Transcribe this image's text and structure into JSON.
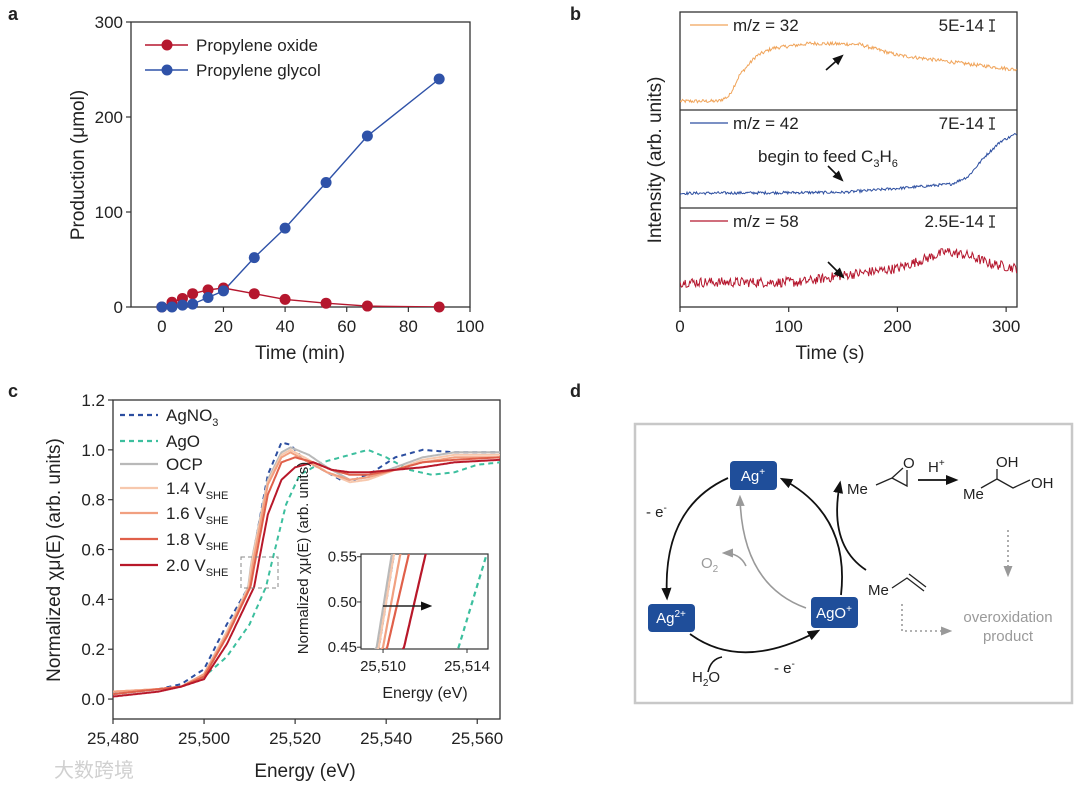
{
  "panel_labels": {
    "a": "a",
    "b": "b",
    "c": "c",
    "d": "d"
  },
  "watermark": "大数跨境",
  "chart_data": [
    {
      "panel": "a",
      "type": "line",
      "xlabel": "Time (min)",
      "ylabel": "Production (μmol)",
      "xlim": [
        -10,
        100
      ],
      "ylim": [
        0,
        300
      ],
      "xticks": [
        0,
        20,
        40,
        60,
        80,
        100
      ],
      "xticklabels": [
        "0",
        "20",
        "40",
        "60",
        "80",
        "100"
      ],
      "yticks": [
        0,
        100,
        200,
        300
      ],
      "yticklabels": [
        "0",
        "100",
        "200",
        "300"
      ],
      "legend": "top-left",
      "series": [
        {
          "name": "Propylene oxide",
          "color": "#b5172e",
          "x": [
            0,
            3.3,
            6.7,
            10,
            15,
            20,
            30,
            40,
            53.3,
            66.7,
            90
          ],
          "y": [
            0,
            5,
            9,
            14,
            18,
            20,
            14,
            8,
            4,
            1,
            0
          ]
        },
        {
          "name": "Propylene glycol",
          "color": "#2f52a8",
          "x": [
            0,
            3.3,
            6.7,
            10,
            15,
            20,
            30,
            40,
            53.3,
            66.7,
            90
          ],
          "y": [
            0,
            0,
            2,
            3,
            10,
            17,
            52,
            83,
            131,
            180,
            240
          ]
        }
      ]
    },
    {
      "panel": "b",
      "type": "line",
      "xlabel": "Time (s)",
      "ylabel": "Intensity (arb. units)",
      "xlim": [
        0,
        310
      ],
      "xticks": [
        0,
        100,
        200,
        300
      ],
      "xticklabels": [
        "0",
        "100",
        "200",
        "300"
      ],
      "series": [
        {
          "name": "m/z = 32",
          "color": "#f0a45a",
          "scale_bar": "5E-14",
          "noise": 0.018,
          "profile": [
            [
              0,
              0.09
            ],
            [
              35,
              0.09
            ],
            [
              45,
              0.14
            ],
            [
              55,
              0.36
            ],
            [
              70,
              0.55
            ],
            [
              85,
              0.63
            ],
            [
              120,
              0.68
            ],
            [
              165,
              0.67
            ],
            [
              200,
              0.56
            ],
            [
              250,
              0.49
            ],
            [
              310,
              0.41
            ]
          ]
        },
        {
          "name": "m/z = 42",
          "color": "#2c4ea0",
          "scale_bar": "7E-14",
          "noise": 0.014,
          "profile": [
            [
              0,
              0.15
            ],
            [
              150,
              0.16
            ],
            [
              200,
              0.2
            ],
            [
              250,
              0.245
            ],
            [
              265,
              0.32
            ],
            [
              280,
              0.52
            ],
            [
              295,
              0.68
            ],
            [
              310,
              0.76
            ]
          ]
        },
        {
          "name": "m/z = 58",
          "color": "#b5172e",
          "scale_bar": "2.5E-14",
          "noise": 0.05,
          "profile": [
            [
              0,
              0.25
            ],
            [
              110,
              0.25
            ],
            [
              150,
              0.32
            ],
            [
              200,
              0.39
            ],
            [
              245,
              0.56
            ],
            [
              265,
              0.52
            ],
            [
              285,
              0.44
            ],
            [
              310,
              0.39
            ]
          ]
        }
      ],
      "annotation": {
        "text": "begin to feed C",
        "sub1": "3",
        "mid": "H",
        "sub2": "6"
      }
    },
    {
      "panel": "c",
      "type": "line",
      "xlabel": "Energy (eV)",
      "ylabel": "Normalized χμ(E) (arb. units)",
      "xlim": [
        25480,
        25565
      ],
      "ylim": [
        -0.08,
        1.2
      ],
      "xticks": [
        25480,
        25500,
        25520,
        25540,
        25560
      ],
      "xticklabels": [
        "25,480",
        "25,500",
        "25,520",
        "25,540",
        "25,560"
      ],
      "yticks": [
        0,
        0.2,
        0.4,
        0.6,
        0.8,
        1.0,
        1.2
      ],
      "yticklabels": [
        "0.0",
        "0.2",
        "0.4",
        "0.6",
        "0.8",
        "1.0",
        "1.2"
      ],
      "legend": "top-left",
      "series": [
        {
          "name": "AgNO",
          "sub": "3",
          "color": "#2c4ea0",
          "dashed": true,
          "points": [
            [
              25480,
              0.02
            ],
            [
              25490,
              0.04
            ],
            [
              25495,
              0.06
            ],
            [
              25500,
              0.12
            ],
            [
              25505,
              0.3
            ],
            [
              25509.8,
              0.45
            ],
            [
              25510.5,
              0.55
            ],
            [
              25514,
              0.9
            ],
            [
              25517,
              1.03
            ],
            [
              25519,
              1.02
            ],
            [
              25522,
              0.96
            ],
            [
              25526,
              0.92
            ],
            [
              25530,
              0.88
            ],
            [
              25533,
              0.88
            ],
            [
              25537,
              0.91
            ],
            [
              25542,
              0.97
            ],
            [
              25548,
              1.0
            ],
            [
              25555,
              0.99
            ],
            [
              25565,
              0.99
            ]
          ]
        },
        {
          "name": "AgO",
          "sub": "",
          "color": "#3cbf9e",
          "dashed": true,
          "points": [
            [
              25480,
              0.02
            ],
            [
              25495,
              0.05
            ],
            [
              25500,
              0.09
            ],
            [
              25505,
              0.17
            ],
            [
              25510,
              0.3
            ],
            [
              25513.6,
              0.45
            ],
            [
              25514.9,
              0.55
            ],
            [
              25518,
              0.78
            ],
            [
              25521,
              0.9
            ],
            [
              25526,
              0.95
            ],
            [
              25532,
              0.98
            ],
            [
              25536,
              1.0
            ],
            [
              25540,
              0.97
            ],
            [
              25545,
              0.92
            ],
            [
              25550,
              0.9
            ],
            [
              25555,
              0.91
            ],
            [
              25560,
              0.94
            ],
            [
              25565,
              0.95
            ]
          ]
        },
        {
          "name": "OCP",
          "sub": "",
          "color": "#b9b9b9",
          "dashed": false,
          "points": [
            [
              25480,
              0.02
            ],
            [
              25490,
              0.04
            ],
            [
              25495,
              0.05
            ],
            [
              25500,
              0.1
            ],
            [
              25505,
              0.27
            ],
            [
              25509.7,
              0.45
            ],
            [
              25510.4,
              0.55
            ],
            [
              25514,
              0.88
            ],
            [
              25517,
              0.99
            ],
            [
              25519,
              1.01
            ],
            [
              25523,
              0.98
            ],
            [
              25527,
              0.93
            ],
            [
              25532,
              0.88
            ],
            [
              25536,
              0.89
            ],
            [
              25542,
              0.93
            ],
            [
              25548,
              0.97
            ],
            [
              25555,
              0.99
            ],
            [
              25565,
              0.99
            ]
          ]
        },
        {
          "name": "1.4 V",
          "sub": "SHE",
          "color": "#f7c8ad",
          "dashed": false,
          "points": [
            [
              25480,
              0.03
            ],
            [
              25490,
              0.04
            ],
            [
              25495,
              0.05
            ],
            [
              25500,
              0.1
            ],
            [
              25505,
              0.27
            ],
            [
              25509.8,
              0.45
            ],
            [
              25510.5,
              0.55
            ],
            [
              25514,
              0.87
            ],
            [
              25517,
              0.98
            ],
            [
              25519,
              1.0
            ],
            [
              25523,
              0.96
            ],
            [
              25527,
              0.91
            ],
            [
              25532,
              0.87
            ],
            [
              25536,
              0.88
            ],
            [
              25542,
              0.92
            ],
            [
              25548,
              0.96
            ],
            [
              25555,
              0.98
            ],
            [
              25565,
              0.98
            ]
          ]
        },
        {
          "name": "1.6 V",
          "sub": "SHE",
          "color": "#f1a080",
          "dashed": false,
          "points": [
            [
              25480,
              0.03
            ],
            [
              25490,
              0.04
            ],
            [
              25495,
              0.05
            ],
            [
              25500,
              0.1
            ],
            [
              25505,
              0.26
            ],
            [
              25510.0,
              0.45
            ],
            [
              25510.8,
              0.55
            ],
            [
              25514,
              0.86
            ],
            [
              25517,
              0.97
            ],
            [
              25519,
              0.99
            ],
            [
              25523,
              0.95
            ],
            [
              25527,
              0.91
            ],
            [
              25532,
              0.88
            ],
            [
              25536,
              0.89
            ],
            [
              25542,
              0.92
            ],
            [
              25548,
              0.95
            ],
            [
              25555,
              0.97
            ],
            [
              25565,
              0.97
            ]
          ]
        },
        {
          "name": "1.8 V",
          "sub": "SHE",
          "color": "#e0604a",
          "dashed": false,
          "points": [
            [
              25480,
              0.02
            ],
            [
              25490,
              0.04
            ],
            [
              25495,
              0.05
            ],
            [
              25500,
              0.09
            ],
            [
              25505,
              0.25
            ],
            [
              25510.2,
              0.45
            ],
            [
              25511.2,
              0.55
            ],
            [
              25514,
              0.82
            ],
            [
              25517,
              0.95
            ],
            [
              25520,
              0.97
            ],
            [
              25524,
              0.95
            ],
            [
              25528,
              0.92
            ],
            [
              25532,
              0.9
            ],
            [
              25536,
              0.9
            ],
            [
              25542,
              0.92
            ],
            [
              25548,
              0.95
            ],
            [
              25555,
              0.96
            ],
            [
              25565,
              0.97
            ]
          ]
        },
        {
          "name": "2.0 V",
          "sub": "SHE",
          "color": "#b8182a",
          "dashed": false,
          "points": [
            [
              25480,
              0.01
            ],
            [
              25490,
              0.03
            ],
            [
              25495,
              0.05
            ],
            [
              25500,
              0.08
            ],
            [
              25505,
              0.22
            ],
            [
              25511.0,
              0.45
            ],
            [
              25512.0,
              0.55
            ],
            [
              25514,
              0.74
            ],
            [
              25517,
              0.88
            ],
            [
              25520,
              0.93
            ],
            [
              25524,
              0.95
            ],
            [
              25528,
              0.92
            ],
            [
              25532,
              0.91
            ],
            [
              25536,
              0.91
            ],
            [
              25542,
              0.92
            ],
            [
              25548,
              0.93
            ],
            [
              25555,
              0.95
            ],
            [
              25565,
              0.96
            ]
          ]
        }
      ],
      "inset": {
        "xlabel": "Energy (eV)",
        "ylabel": "Normalized χμ(E) (arb. units)",
        "xlim": [
          25508.95,
          25515.0
        ],
        "ylim": [
          0.448,
          0.553
        ],
        "xticks": [
          25510,
          25514
        ],
        "xticklabels": [
          "25,510",
          "25,514"
        ],
        "yticks": [
          0.45,
          0.5,
          0.55
        ],
        "yticklabels": [
          "0.45",
          "0.50",
          "0.55"
        ]
      }
    }
  ],
  "diagram": {
    "ag_plus": "Ag",
    "ag_plus_sup": "+",
    "ag_2plus": "Ag",
    "ag_2plus_sup": "2+",
    "ago_plus": "AgO",
    "ago_plus_sup": "+",
    "minus_e_left": "- e",
    "minus_e_left_sup": "-",
    "minus_e_bottom": "- e",
    "minus_e_bottom_sup": "-",
    "water": "H",
    "water_sub": "2",
    "water_end": "O",
    "oxygen": "O",
    "oxygen_sub": "2",
    "epoxide_me": "Me",
    "epoxide_o": "O",
    "acid": "H",
    "acid_sup": "+",
    "diol_oh_top": "OH",
    "diol_oh_right": "OH",
    "diol_me": "Me",
    "propene_me": "Me",
    "overoxidation_line1": "overoxidation",
    "overoxidation_line2": "product"
  }
}
